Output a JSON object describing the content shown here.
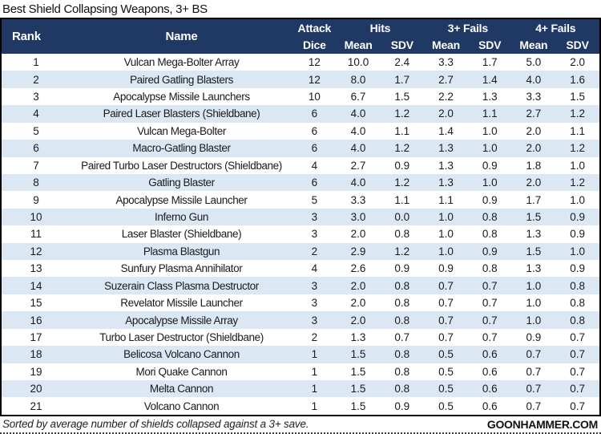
{
  "title": "Best Shield Collapsing Weapons, 3+ BS",
  "header_labels": {
    "rank": "Rank",
    "name": "Name",
    "attack": "Attack",
    "dice": "Dice",
    "hits": "Hits",
    "fails3": "3+ Fails",
    "fails4": "4+ Fails",
    "mean": "Mean",
    "sdv": "SDV"
  },
  "chart_data": {
    "type": "table",
    "title": "Best Shield Collapsing Weapons, 3+ BS",
    "column_groups": [
      "Rank",
      "Name",
      "Attack Dice",
      "Hits (Mean, SDV)",
      "3+ Fails (Mean, SDV)",
      "4+ Fails (Mean, SDV)"
    ],
    "columns": [
      "Rank",
      "Name",
      "Attack Dice",
      "Hits Mean",
      "Hits SDV",
      "3+ Fails Mean",
      "3+ Fails SDV",
      "4+ Fails Mean",
      "4+ Fails SDV"
    ],
    "rows": [
      [
        "1",
        "Vulcan Mega-Bolter Array",
        "12",
        "10.0",
        "2.4",
        "3.3",
        "1.7",
        "5.0",
        "2.0"
      ],
      [
        "2",
        "Paired Gatling Blasters",
        "12",
        "8.0",
        "1.7",
        "2.7",
        "1.4",
        "4.0",
        "1.6"
      ],
      [
        "3",
        "Apocalypse Missile Launchers",
        "10",
        "6.7",
        "1.5",
        "2.2",
        "1.3",
        "3.3",
        "1.5"
      ],
      [
        "4",
        "Paired Laser Blasters (Shieldbane)",
        "6",
        "4.0",
        "1.2",
        "2.0",
        "1.1",
        "2.7",
        "1.2"
      ],
      [
        "5",
        "Vulcan Mega-Bolter",
        "6",
        "4.0",
        "1.1",
        "1.4",
        "1.0",
        "2.0",
        "1.1"
      ],
      [
        "6",
        "Macro-Gatling Blaster",
        "6",
        "4.0",
        "1.2",
        "1.3",
        "1.0",
        "2.0",
        "1.2"
      ],
      [
        "7",
        "Paired Turbo Laser Destructors (Shieldbane)",
        "4",
        "2.7",
        "0.9",
        "1.3",
        "0.9",
        "1.8",
        "1.0"
      ],
      [
        "8",
        "Gatling Blaster",
        "6",
        "4.0",
        "1.2",
        "1.3",
        "1.0",
        "2.0",
        "1.2"
      ],
      [
        "9",
        "Apocalypse Missile Launcher",
        "5",
        "3.3",
        "1.1",
        "1.1",
        "0.9",
        "1.7",
        "1.0"
      ],
      [
        "10",
        "Inferno Gun",
        "3",
        "3.0",
        "0.0",
        "1.0",
        "0.8",
        "1.5",
        "0.9"
      ],
      [
        "11",
        "Laser Blaster (Shieldbane)",
        "3",
        "2.0",
        "0.8",
        "1.0",
        "0.8",
        "1.3",
        "0.9"
      ],
      [
        "12",
        "Plasma Blastgun",
        "2",
        "2.9",
        "1.2",
        "1.0",
        "0.9",
        "1.5",
        "1.0"
      ],
      [
        "13",
        "Sunfury Plasma Annihilator",
        "4",
        "2.6",
        "0.9",
        "0.9",
        "0.8",
        "1.3",
        "0.9"
      ],
      [
        "14",
        "Suzerain Class Plasma Destructor",
        "3",
        "2.0",
        "0.8",
        "0.7",
        "0.7",
        "1.0",
        "0.8"
      ],
      [
        "15",
        "Revelator Missile Launcher",
        "3",
        "2.0",
        "0.8",
        "0.7",
        "0.7",
        "1.0",
        "0.8"
      ],
      [
        "16",
        "Apocalypse Missile Array",
        "3",
        "2.0",
        "0.8",
        "0.7",
        "0.7",
        "1.0",
        "0.8"
      ],
      [
        "17",
        "Turbo Laser Destructor (Shieldbane)",
        "2",
        "1.3",
        "0.7",
        "0.7",
        "0.7",
        "0.9",
        "0.7"
      ],
      [
        "18",
        "Belicosa Volcano Cannon",
        "1",
        "1.5",
        "0.8",
        "0.5",
        "0.6",
        "0.7",
        "0.7"
      ],
      [
        "19",
        "Mori Quake Cannon",
        "1",
        "1.5",
        "0.8",
        "0.5",
        "0.6",
        "0.7",
        "0.7"
      ],
      [
        "20",
        "Melta Cannon",
        "1",
        "1.5",
        "0.8",
        "0.5",
        "0.6",
        "0.7",
        "0.7"
      ],
      [
        "21",
        "Volcano Cannon",
        "1",
        "1.5",
        "0.9",
        "0.5",
        "0.6",
        "0.7",
        "0.7"
      ]
    ],
    "sort_note": "Sorted by average number of shields collapsed against a 3+ save.",
    "layout_hints": {
      "alternating_row_shading": true,
      "shaded_rows": "even ranks",
      "numeric_alignment": "center"
    }
  },
  "footer": {
    "note": "Sorted by average number of shields collapsed against a 3+ save.",
    "brand": "GOONHAMMER.COM"
  },
  "colors": {
    "header_bg": "#1f3864",
    "header_text": "#ffffff",
    "row_alt_bg": "#dbe8f4",
    "row_bg": "#ffffff",
    "border": "#000000",
    "body_text": "#1a1a1a"
  }
}
